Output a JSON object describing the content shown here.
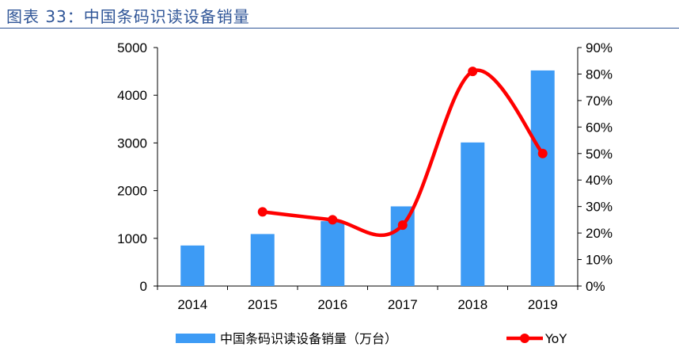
{
  "header": {
    "title": "图表 33：中国条码识读设备销量"
  },
  "chart_data": {
    "type": "bar",
    "categories": [
      "2014",
      "2015",
      "2016",
      "2017",
      "2018",
      "2019"
    ],
    "series": [
      {
        "name": "中国条码识读设备销量（万台）",
        "type": "bar",
        "axis": "left",
        "color": "#3D9BF5",
        "values": [
          850,
          1090,
          1360,
          1670,
          3010,
          4520
        ]
      },
      {
        "name": "YoY",
        "type": "line",
        "axis": "right",
        "color": "#FF0000",
        "smooth": true,
        "markers": true,
        "values": [
          null,
          28,
          25,
          23,
          81,
          50
        ]
      }
    ],
    "y_left": {
      "min": 0,
      "max": 5000,
      "ticks": [
        0,
        1000,
        2000,
        3000,
        4000,
        5000
      ]
    },
    "y_right": {
      "min": 0,
      "max": 90,
      "ticks": [
        "0%",
        "10%",
        "20%",
        "30%",
        "40%",
        "50%",
        "60%",
        "70%",
        "80%",
        "90%"
      ]
    },
    "grid": false,
    "legend_position": "bottom"
  }
}
